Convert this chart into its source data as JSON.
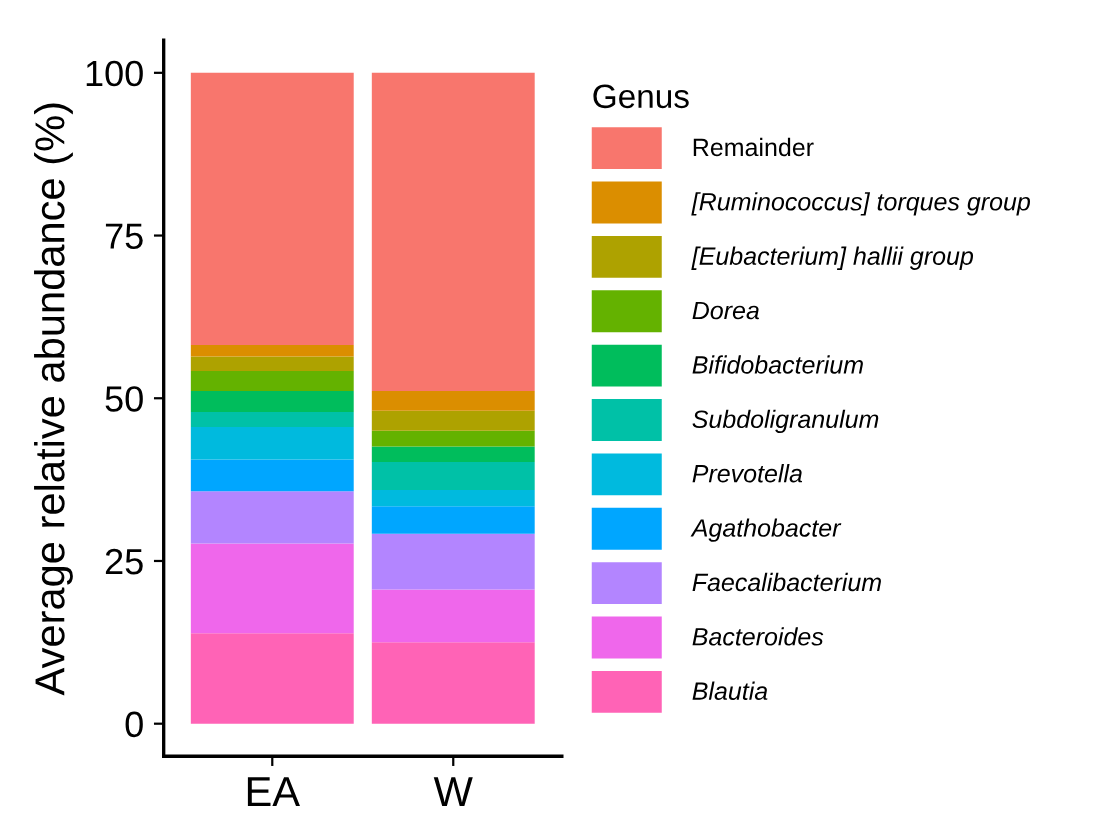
{
  "chart_data": {
    "type": "bar",
    "stacked": true,
    "ylabel": "Average relative abundance (%)",
    "legend_title": "Genus",
    "legend": "right",
    "grid": false,
    "categories": [
      "EA",
      "W"
    ],
    "ylim": [
      -5,
      105
    ],
    "yticks": [
      0,
      25,
      50,
      75,
      100
    ],
    "series": [
      {
        "name": "Blautia",
        "color": "#ff63b6",
        "values": [
          13.9,
          12.5
        ]
      },
      {
        "name": "Bacteroides",
        "color": "#ef67eb",
        "values": [
          13.8,
          8.1
        ]
      },
      {
        "name": "Faecalibacterium",
        "color": "#b385ff",
        "values": [
          8.0,
          8.6
        ]
      },
      {
        "name": "Agathobacter",
        "color": "#00a6ff",
        "values": [
          4.9,
          4.2
        ]
      },
      {
        "name": "Prevotella",
        "color": "#00bade",
        "values": [
          5.0,
          2.5
        ]
      },
      {
        "name": "Subdoligranulum",
        "color": "#00c1a7",
        "values": [
          2.3,
          4.3
        ]
      },
      {
        "name": "Bifidobacterium",
        "color": "#00bd5c",
        "values": [
          3.2,
          2.4
        ]
      },
      {
        "name": "Dorea",
        "color": "#64b200",
        "values": [
          3.1,
          2.4
        ]
      },
      {
        "name": "[Eubacterium] hallii group",
        "color": "#aea200",
        "values": [
          2.2,
          3.1
        ]
      },
      {
        "name": "[Ruminococcus] torques group",
        "color": "#db8e00",
        "values": [
          1.8,
          3.0
        ]
      },
      {
        "name": "Remainder",
        "color": "#f8766d",
        "values": [
          41.8,
          48.9
        ]
      }
    ]
  }
}
